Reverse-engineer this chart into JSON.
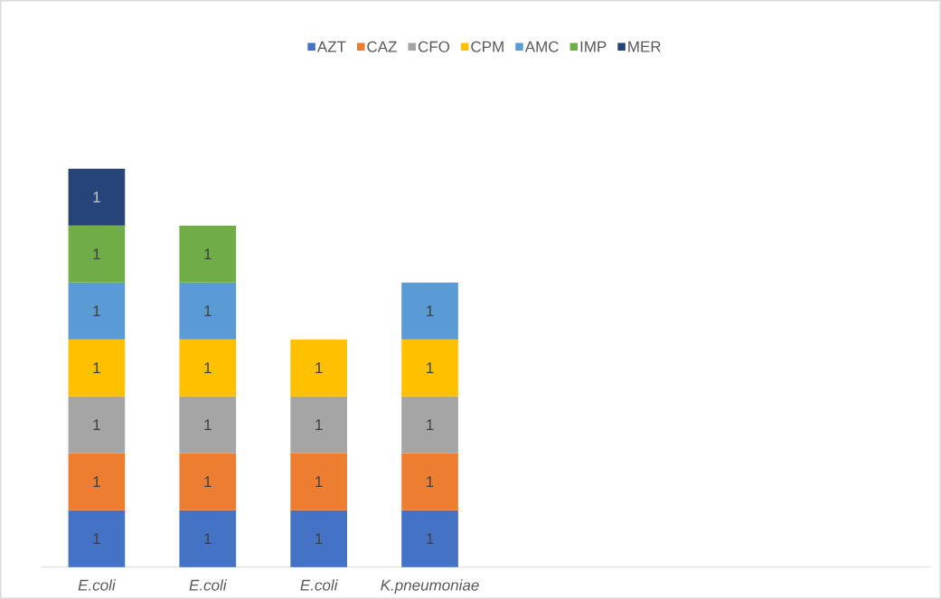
{
  "chart_data": {
    "type": "bar",
    "stacked": true,
    "categories": [
      "E.coli",
      "E.coli",
      "E.coli",
      "K.pneumoniae",
      null,
      null,
      null,
      null
    ],
    "series": [
      {
        "name": "AZT",
        "color": "#4472c4",
        "values": [
          1,
          1,
          1,
          1,
          null,
          null,
          null,
          null
        ]
      },
      {
        "name": "CAZ",
        "color": "#ed7d31",
        "values": [
          1,
          1,
          1,
          1,
          null,
          null,
          null,
          null
        ]
      },
      {
        "name": "CFO",
        "color": "#a5a5a5",
        "values": [
          1,
          1,
          1,
          1,
          null,
          null,
          null,
          null
        ]
      },
      {
        "name": "CPM",
        "color": "#ffc000",
        "values": [
          1,
          1,
          1,
          1,
          null,
          null,
          null,
          null
        ]
      },
      {
        "name": "AMC",
        "color": "#5b9bd5",
        "values": [
          1,
          1,
          null,
          1,
          null,
          null,
          null,
          null
        ]
      },
      {
        "name": "IMP",
        "color": "#70ad47",
        "values": [
          1,
          1,
          null,
          null,
          null,
          null,
          null,
          null
        ]
      },
      {
        "name": "MER",
        "color": "#264478",
        "values": [
          1,
          null,
          null,
          null,
          null,
          null,
          null,
          null
        ]
      }
    ],
    "tick_labels": "x",
    "data_labels": true,
    "legend": "top"
  }
}
